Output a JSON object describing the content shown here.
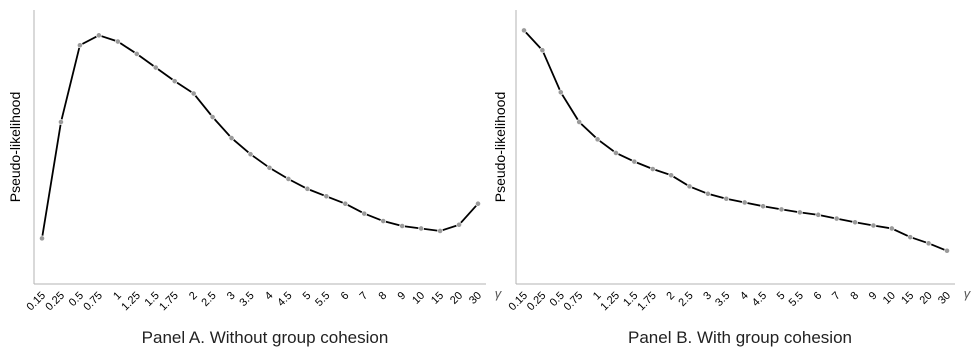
{
  "chart_data": [
    {
      "type": "line",
      "title": "Panel A. Without group cohesion",
      "xlabel": "γ",
      "ylabel": "Pseudo-likelihood",
      "categories": [
        "0.15",
        "0.25",
        "0.5",
        "0.75",
        "1",
        "1.25",
        "1.5",
        "1.75",
        "2",
        "2.5",
        "3",
        "3.5",
        "4",
        "4.5",
        "5",
        "5.5",
        "6",
        "7",
        "8",
        "9",
        "10",
        "15",
        "20",
        "30"
      ],
      "values": [
        0.16,
        0.63,
        0.94,
        0.98,
        0.955,
        0.905,
        0.85,
        0.795,
        0.745,
        0.65,
        0.565,
        0.5,
        0.445,
        0.4,
        0.36,
        0.33,
        0.3,
        0.26,
        0.23,
        0.21,
        0.2,
        0.19,
        0.215,
        0.3
      ],
      "ylim": [
        0,
        1.05
      ],
      "yticks": "none",
      "grid": false,
      "legend": "none"
    },
    {
      "type": "line",
      "title": "Panel B. With group cohesion",
      "xlabel": "γ",
      "ylabel": "Pseudo-likelihood",
      "categories": [
        "0.15",
        "0.25",
        "0.5",
        "0.75",
        "1",
        "1.25",
        "1.5",
        "1.75",
        "2",
        "2.5",
        "3",
        "3.5",
        "4",
        "4.5",
        "5",
        "5.5",
        "6",
        "7",
        "8",
        "9",
        "10",
        "15",
        "20",
        "30"
      ],
      "values": [
        1.0,
        0.92,
        0.75,
        0.63,
        0.56,
        0.505,
        0.47,
        0.44,
        0.415,
        0.37,
        0.34,
        0.32,
        0.305,
        0.29,
        0.277,
        0.265,
        0.255,
        0.24,
        0.225,
        0.212,
        0.2,
        0.165,
        0.14,
        0.11
      ],
      "ylim": [
        0,
        1.05
      ],
      "yticks": "none",
      "grid": false,
      "legend": "none"
    }
  ]
}
